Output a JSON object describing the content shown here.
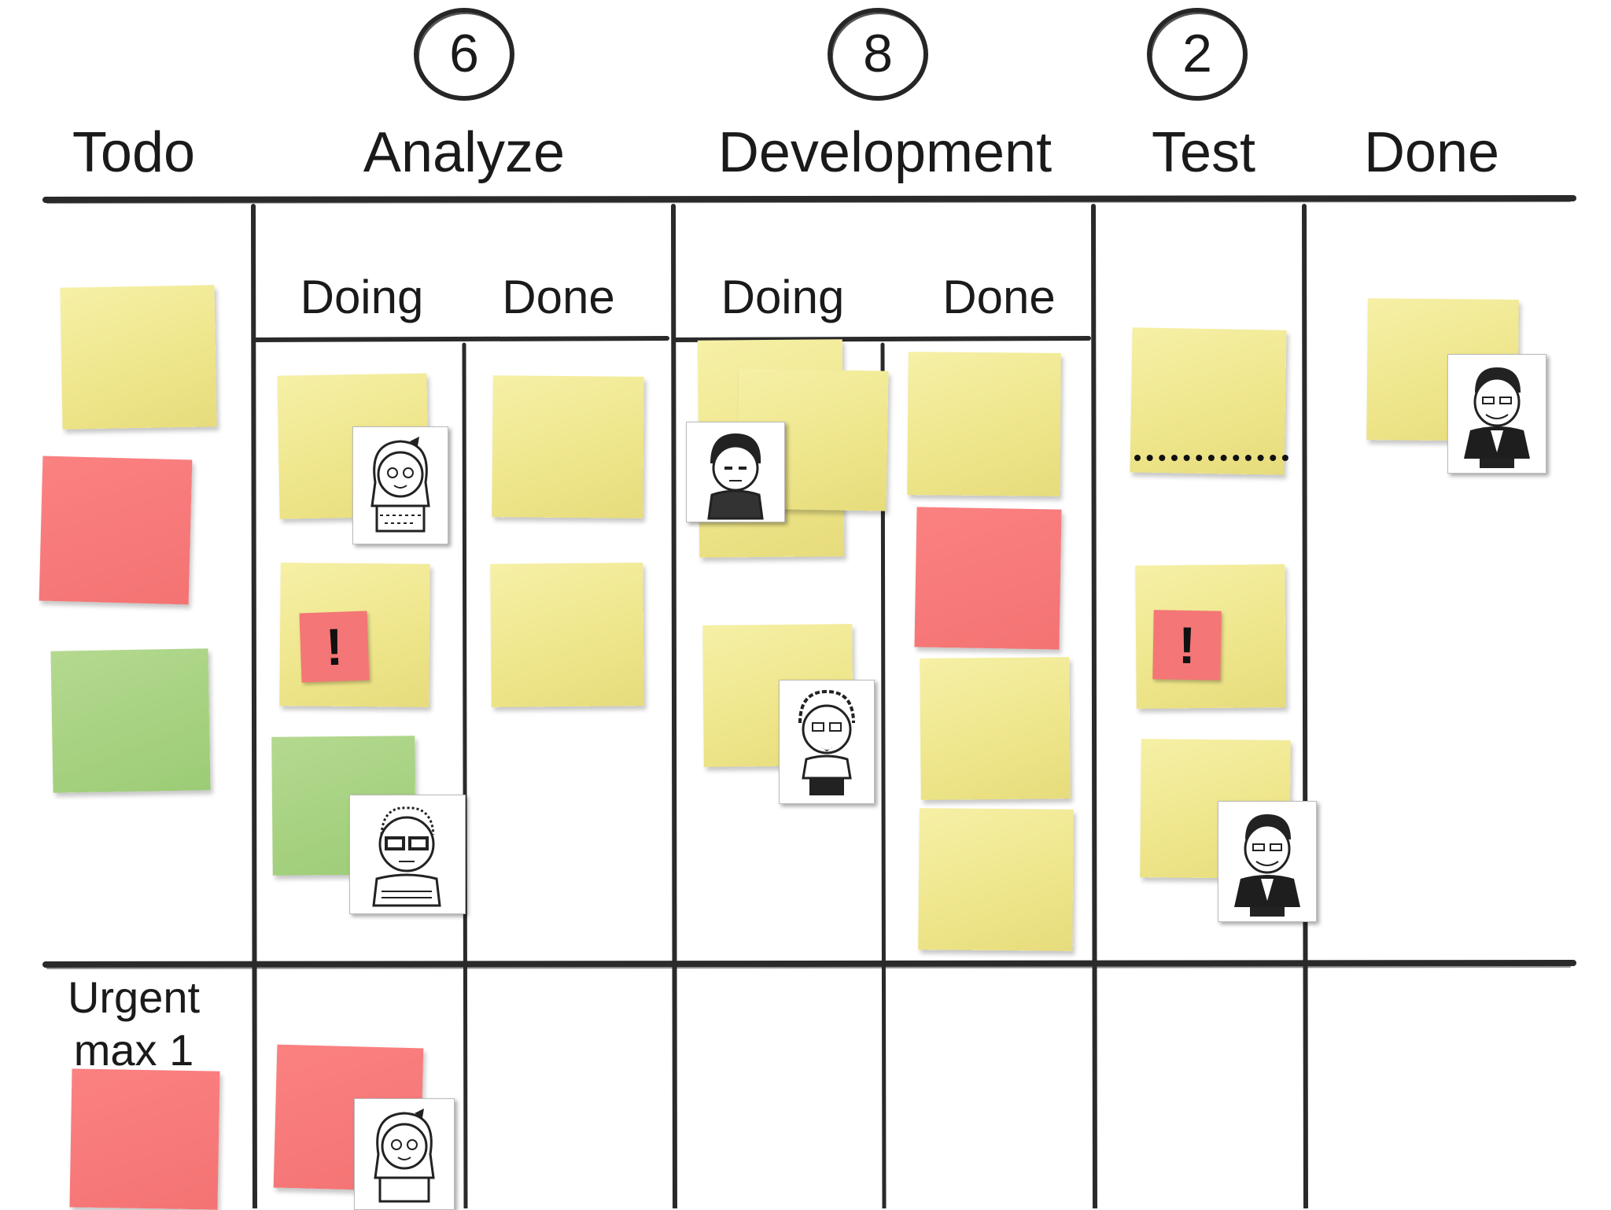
{
  "board": {
    "columns": [
      {
        "title": "Todo"
      },
      {
        "title": "Analyze",
        "wip_limit": "6",
        "sub_columns": [
          "Doing",
          "Done"
        ]
      },
      {
        "title": "Development",
        "wip_limit": "8",
        "sub_columns": [
          "Doing",
          "Done"
        ]
      },
      {
        "title": "Test",
        "wip_limit": "2"
      },
      {
        "title": "Done"
      }
    ],
    "urgent_lane": {
      "label_line1": "Urgent",
      "label_line2": "max 1"
    },
    "blocker_symbol": "!",
    "colors": {
      "yellow": "#eee58a",
      "red": "#f47373",
      "green": "#9ccc76",
      "line": "#2a2a2a"
    }
  }
}
